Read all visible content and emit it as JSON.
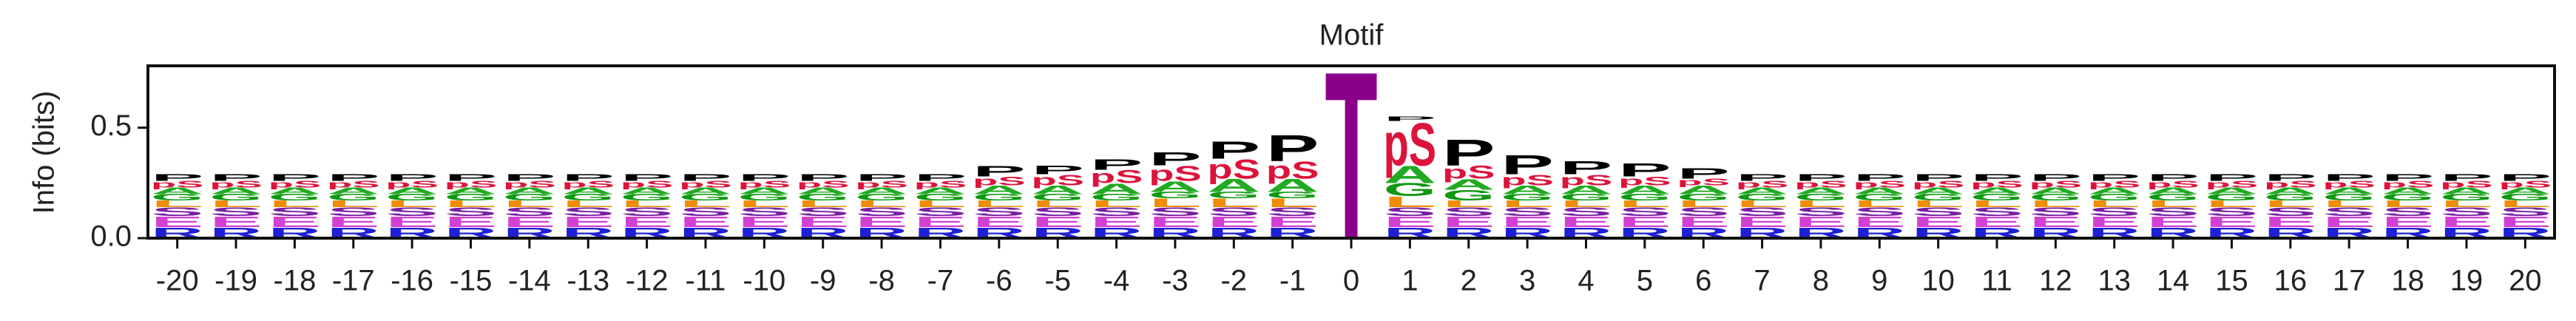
{
  "chart_data": {
    "type": "logo",
    "title": "Motif",
    "y_label": "Info (bits)",
    "categories": [
      "-20",
      "-19",
      "-18",
      "-17",
      "-16",
      "-15",
      "-14",
      "-13",
      "-12",
      "-11",
      "-10",
      "-9",
      "-8",
      "-7",
      "-6",
      "-5",
      "-4",
      "-3",
      "-2",
      "-1",
      "0",
      "1",
      "2",
      "3",
      "4",
      "5",
      "6",
      "7",
      "8",
      "9",
      "10",
      "11",
      "12",
      "13",
      "14",
      "15",
      "16",
      "17",
      "18",
      "19",
      "20"
    ],
    "ylim": [
      0,
      0.78
    ],
    "yticks": [
      {
        "value": 0,
        "label": "0.0"
      },
      {
        "value": 0.5,
        "label": "0.5"
      }
    ],
    "series": [
      {
        "name": "R",
        "color": "#1f1fd6",
        "values": [
          0.05,
          0.05,
          0.05,
          0.05,
          0.05,
          0.05,
          0.05,
          0.05,
          0.05,
          0.05,
          0.05,
          0.05,
          0.05,
          0.05,
          0.05,
          0.05,
          0.05,
          0.05,
          0.05,
          0.05,
          0,
          0.05,
          0.05,
          0.05,
          0.05,
          0.05,
          0.05,
          0.05,
          0.05,
          0.05,
          0.05,
          0.05,
          0.05,
          0.05,
          0.05,
          0.05,
          0.05,
          0.05,
          0.05,
          0.05,
          0.05
        ]
      },
      {
        "name": "E",
        "color": "#d23fd2",
        "values": [
          0.05,
          0.05,
          0.05,
          0.05,
          0.05,
          0.05,
          0.05,
          0.05,
          0.05,
          0.05,
          0.05,
          0.05,
          0.05,
          0.05,
          0.05,
          0.05,
          0.05,
          0.05,
          0.05,
          0.05,
          0,
          0.05,
          0.05,
          0.05,
          0.05,
          0.05,
          0.05,
          0.05,
          0.05,
          0.05,
          0.05,
          0.05,
          0.05,
          0.05,
          0.05,
          0.05,
          0.05,
          0.05,
          0.05,
          0.05,
          0.05
        ]
      },
      {
        "name": "S",
        "color": "#7a1fa2",
        "values": [
          0.04,
          0.04,
          0.04,
          0.04,
          0.04,
          0.04,
          0.04,
          0.04,
          0.04,
          0.04,
          0.04,
          0.04,
          0.04,
          0.04,
          0.04,
          0.04,
          0.04,
          0.04,
          0.04,
          0.04,
          0,
          0.04,
          0.04,
          0.04,
          0.04,
          0.04,
          0.04,
          0.04,
          0.04,
          0.04,
          0.04,
          0.04,
          0.04,
          0.04,
          0.04,
          0.04,
          0.04,
          0.04,
          0.04,
          0.04,
          0.04
        ]
      },
      {
        "name": "L",
        "color": "#f08c00",
        "values": [
          0.03,
          0.03,
          0.03,
          0.03,
          0.03,
          0.03,
          0.03,
          0.03,
          0.03,
          0.03,
          0.03,
          0.03,
          0.03,
          0.03,
          0.03,
          0.03,
          0.03,
          0.04,
          0.04,
          0.04,
          0,
          0.05,
          0.03,
          0.03,
          0.03,
          0.03,
          0.03,
          0.03,
          0.03,
          0.03,
          0.03,
          0.03,
          0.03,
          0.03,
          0.03,
          0.03,
          0.03,
          0.03,
          0.03,
          0.03,
          0.03
        ]
      },
      {
        "name": "G",
        "color": "#119911",
        "values": [
          0.03,
          0.03,
          0.03,
          0.03,
          0.03,
          0.03,
          0.03,
          0.03,
          0.03,
          0.03,
          0.03,
          0.03,
          0.03,
          0.03,
          0.03,
          0.03,
          0.03,
          0.03,
          0.03,
          0.03,
          0,
          0.06,
          0.05,
          0.03,
          0.03,
          0.03,
          0.03,
          0.03,
          0.03,
          0.03,
          0.03,
          0.03,
          0.03,
          0.03,
          0.03,
          0.03,
          0.03,
          0.03,
          0.03,
          0.03,
          0.03
        ]
      },
      {
        "name": "A",
        "color": "#22aa22",
        "values": [
          0.03,
          0.03,
          0.03,
          0.03,
          0.03,
          0.03,
          0.03,
          0.03,
          0.03,
          0.03,
          0.03,
          0.03,
          0.03,
          0.03,
          0.04,
          0.04,
          0.05,
          0.05,
          0.06,
          0.06,
          0,
          0.08,
          0.05,
          0.04,
          0.04,
          0.04,
          0.04,
          0.03,
          0.03,
          0.03,
          0.03,
          0.03,
          0.03,
          0.03,
          0.03,
          0.03,
          0.03,
          0.03,
          0.03,
          0.03,
          0.03
        ]
      },
      {
        "name": "pS",
        "color": "#dc143c",
        "values": [
          0.03,
          0.03,
          0.03,
          0.03,
          0.03,
          0.03,
          0.03,
          0.03,
          0.03,
          0.03,
          0.03,
          0.03,
          0.03,
          0.03,
          0.04,
          0.05,
          0.06,
          0.07,
          0.09,
          0.08,
          0,
          0.2,
          0.06,
          0.05,
          0.05,
          0.04,
          0.03,
          0.03,
          0.03,
          0.03,
          0.03,
          0.03,
          0.03,
          0.03,
          0.03,
          0.03,
          0.03,
          0.03,
          0.03,
          0.03,
          0.03
        ]
      },
      {
        "name": "P",
        "color": "#000000",
        "values": [
          0.03,
          0.03,
          0.03,
          0.03,
          0.03,
          0.03,
          0.03,
          0.03,
          0.03,
          0.03,
          0.03,
          0.03,
          0.03,
          0.03,
          0.05,
          0.04,
          0.05,
          0.06,
          0.08,
          0.12,
          0,
          0.02,
          0.12,
          0.09,
          0.06,
          0.06,
          0.05,
          0.03,
          0.03,
          0.03,
          0.03,
          0.03,
          0.03,
          0.03,
          0.03,
          0.03,
          0.03,
          0.03,
          0.03,
          0.03,
          0.03
        ]
      },
      {
        "name": "T",
        "color": "#8b008b",
        "values": [
          0,
          0,
          0,
          0,
          0,
          0,
          0,
          0,
          0,
          0,
          0,
          0,
          0,
          0,
          0,
          0,
          0,
          0,
          0,
          0,
          0.78,
          0,
          0,
          0,
          0,
          0,
          0,
          0,
          0,
          0,
          0,
          0,
          0,
          0,
          0,
          0,
          0,
          0,
          0,
          0,
          0
        ]
      }
    ]
  }
}
